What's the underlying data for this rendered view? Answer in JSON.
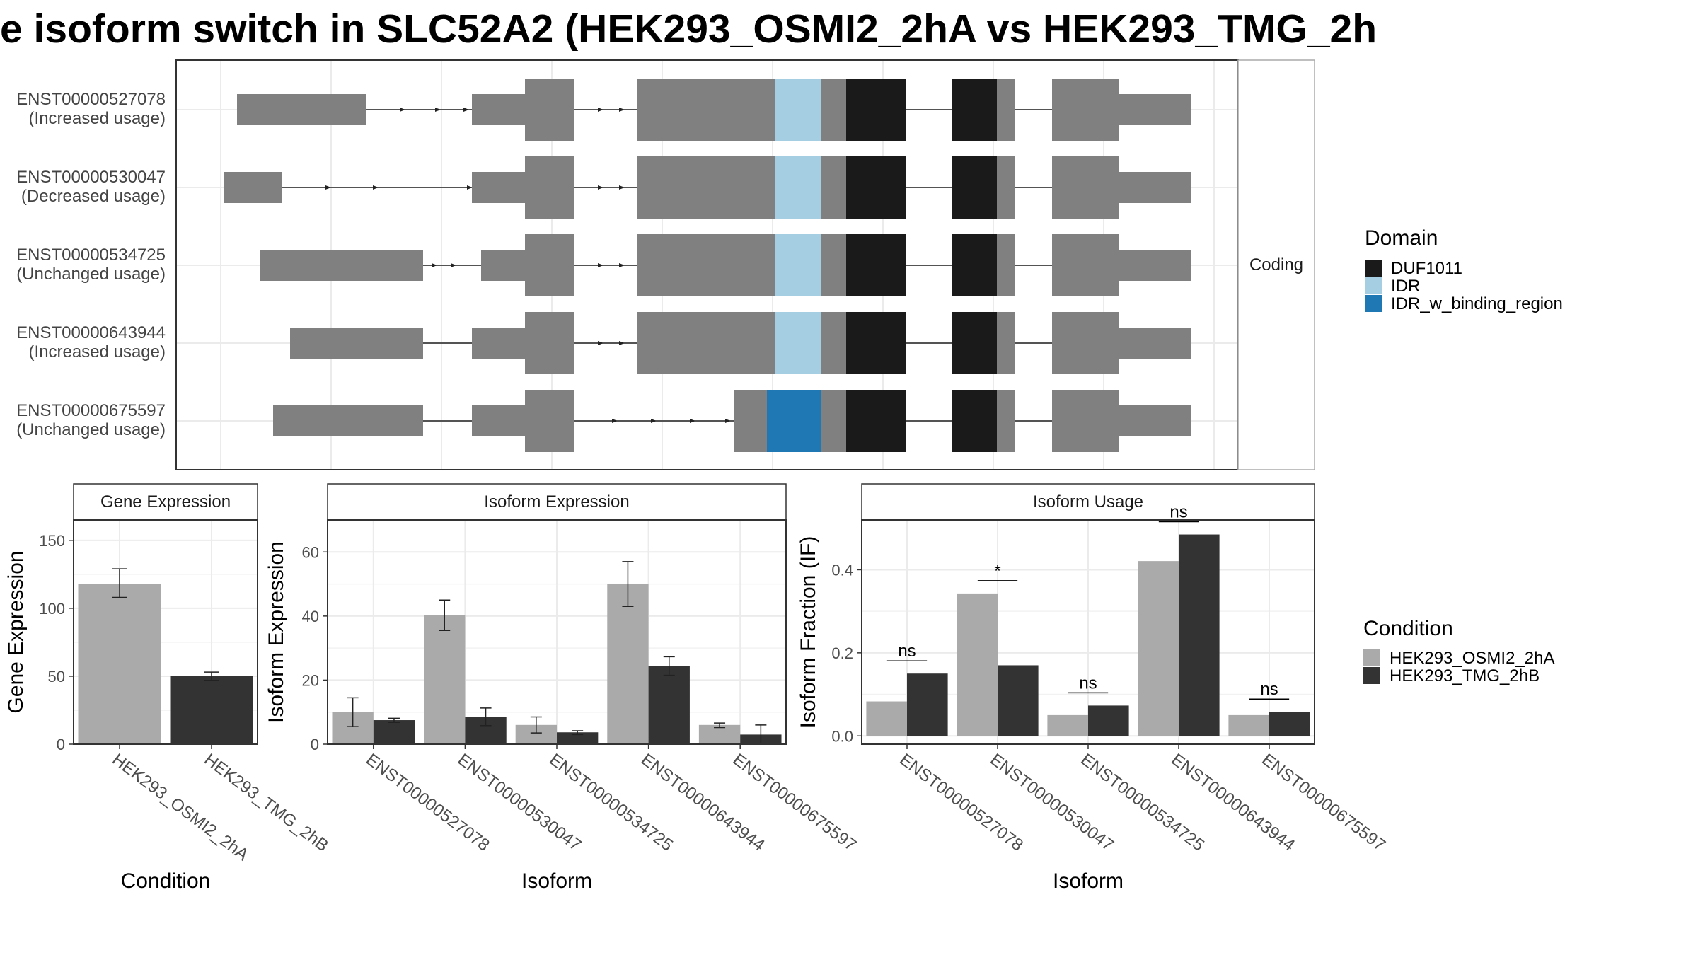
{
  "page_title": "e isoform switch in SLC52A2 (HEK293_OSMI2_2hA vs HEK293_TMG_2h",
  "colors": {
    "exon": "#808080",
    "DUF1011": "#1a1a1a",
    "IDR": "#a6cee3",
    "IDR_w_binding_region": "#1f78b4",
    "HEK293_OSMI2_2hA": "#aaaaaa",
    "HEK293_TMG_2hB": "#333333",
    "grid": "#ebebeb",
    "strip_text": "#1a1a1a"
  },
  "chart_data": [
    {
      "type": "gene-structure",
      "facet_label": "Coding",
      "domain_legend": {
        "title": "Domain",
        "entries": [
          "DUF1011",
          "IDR",
          "IDR_w_binding_region"
        ]
      },
      "transcripts": [
        {
          "id": "ENST00000527078",
          "usage": "(Increased usage)",
          "domains": [
            "IDR",
            "DUF1011"
          ]
        },
        {
          "id": "ENST00000530047",
          "usage": "(Decreased usage)",
          "domains": [
            "IDR",
            "DUF1011"
          ]
        },
        {
          "id": "ENST00000534725",
          "usage": "(Unchanged usage)",
          "domains": [
            "IDR",
            "DUF1011"
          ]
        },
        {
          "id": "ENST00000643944",
          "usage": "(Increased usage)",
          "domains": [
            "IDR",
            "DUF1011"
          ]
        },
        {
          "id": "ENST00000675597",
          "usage": "(Unchanged usage)",
          "domains": [
            "IDR_w_binding_region",
            "DUF1011"
          ]
        }
      ]
    },
    {
      "type": "bar",
      "title": "Gene Expression",
      "xlabel": "Condition",
      "ylabel": "Gene Expression",
      "ylim": [
        0,
        165
      ],
      "yticks": [
        0,
        50,
        100,
        150
      ],
      "categories": [
        "HEK293_OSMI2_2hA",
        "HEK293_TMG_2hB"
      ],
      "values": [
        118,
        50
      ],
      "errors": [
        [
          108,
          129
        ],
        [
          47,
          53
        ]
      ]
    },
    {
      "type": "bar",
      "title": "Isoform Expression",
      "xlabel": "Isoform",
      "ylabel": "Isoform Expression",
      "ylim": [
        0,
        70
      ],
      "yticks": [
        0,
        20,
        40,
        60
      ],
      "categories": [
        "ENST00000527078",
        "ENST00000530047",
        "ENST00000534725",
        "ENST00000643944",
        "ENST00000675597"
      ],
      "series": [
        {
          "name": "HEK293_OSMI2_2hA",
          "values": [
            10,
            40.3,
            6,
            50,
            6
          ],
          "errors": [
            [
              5.5,
              14.5
            ],
            [
              35.5,
              45
            ],
            [
              3.5,
              8.5
            ],
            [
              43,
              57
            ],
            [
              5.2,
              6.6
            ]
          ]
        },
        {
          "name": "HEK293_TMG_2hB",
          "values": [
            7.5,
            8.5,
            3.7,
            24.3,
            3
          ],
          "errors": [
            [
              6.8,
              8.1
            ],
            [
              5.8,
              11.3
            ],
            [
              3,
              4.2
            ],
            [
              21.5,
              27.3
            ],
            [
              0,
              6
            ]
          ]
        }
      ]
    },
    {
      "type": "bar",
      "title": "Isoform Usage",
      "xlabel": "Isoform",
      "ylabel": "Isoform Fraction (IF)",
      "ylim": [
        -0.02,
        0.52
      ],
      "yticks": [
        "0.0",
        "0.2",
        "0.4"
      ],
      "categories": [
        "ENST00000527078",
        "ENST00000530047",
        "ENST00000534725",
        "ENST00000643944",
        "ENST00000675597"
      ],
      "series": [
        {
          "name": "HEK293_OSMI2_2hA",
          "values": [
            0.083,
            0.343,
            0.05,
            0.421,
            0.05
          ]
        },
        {
          "name": "HEK293_TMG_2hB",
          "values": [
            0.15,
            0.17,
            0.073,
            0.485,
            0.058
          ]
        }
      ],
      "significance": [
        "ns",
        "*",
        "ns",
        "ns",
        "ns"
      ]
    }
  ],
  "condition_legend": {
    "title": "Condition",
    "entries": [
      "HEK293_OSMI2_2hA",
      "HEK293_TMG_2hB"
    ]
  }
}
